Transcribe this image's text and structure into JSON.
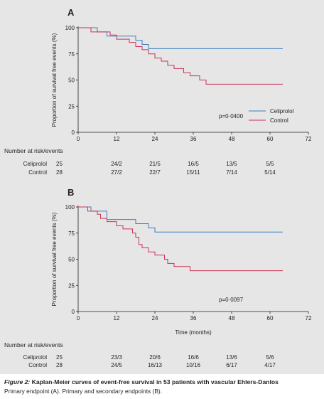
{
  "chart_data": [
    {
      "type": "line",
      "panel_label": "A",
      "ylabel": "Proportion of survival free events (%)",
      "xlabel": "",
      "x_ticks": [
        "0",
        "12",
        "24",
        "36",
        "48",
        "60",
        "72"
      ],
      "y_ticks": [
        "0",
        "25",
        "50",
        "75",
        "100"
      ],
      "xlim": [
        0,
        72
      ],
      "ylim": [
        0,
        100
      ],
      "p_value": "p=0·0400",
      "legend": [
        "Celiprolol",
        "Control"
      ],
      "legend_position": "bottom-right",
      "series": [
        {
          "name": "Celiprolol",
          "color": "#3a7fc1",
          "points": [
            [
              0,
              100
            ],
            [
              6,
              100
            ],
            [
              6,
              96
            ],
            [
              9,
              96
            ],
            [
              9,
              92
            ],
            [
              18,
              92
            ],
            [
              18,
              88
            ],
            [
              20,
              88
            ],
            [
              20,
              84
            ],
            [
              22,
              84
            ],
            [
              22,
              80
            ],
            [
              64,
              80
            ]
          ]
        },
        {
          "name": "Control",
          "color": "#cc3355",
          "points": [
            [
              0,
              100
            ],
            [
              4,
              100
            ],
            [
              4,
              96
            ],
            [
              10,
              96
            ],
            [
              10,
              93
            ],
            [
              12,
              93
            ],
            [
              12,
              89
            ],
            [
              16,
              89
            ],
            [
              16,
              86
            ],
            [
              18,
              86
            ],
            [
              18,
              82
            ],
            [
              20,
              82
            ],
            [
              20,
              79
            ],
            [
              22,
              79
            ],
            [
              22,
              75
            ],
            [
              24,
              75
            ],
            [
              24,
              71
            ],
            [
              26,
              71
            ],
            [
              26,
              68
            ],
            [
              28,
              68
            ],
            [
              28,
              64
            ],
            [
              30,
              64
            ],
            [
              30,
              61
            ],
            [
              33,
              61
            ],
            [
              33,
              57
            ],
            [
              35,
              57
            ],
            [
              35,
              54
            ],
            [
              38,
              54
            ],
            [
              38,
              50
            ],
            [
              40,
              50
            ],
            [
              40,
              46
            ],
            [
              64,
              46
            ]
          ]
        }
      ],
      "risk_table": {
        "title": "Number at risk/events",
        "rows": [
          {
            "name": "Celiprolol",
            "values": [
              "25",
              "24/2",
              "21/5",
              "16/5",
              "13/5",
              "5/5"
            ]
          },
          {
            "name": "Control",
            "values": [
              "28",
              "27/2",
              "22/7",
              "15/11",
              "7/14",
              "5/14"
            ]
          }
        ]
      }
    },
    {
      "type": "line",
      "panel_label": "B",
      "ylabel": "Proportion of survival free events (%)",
      "xlabel": "Time (months)",
      "x_ticks": [
        "0",
        "12",
        "24",
        "36",
        "48",
        "60",
        "72"
      ],
      "y_ticks": [
        "0",
        "25",
        "50",
        "75",
        "100"
      ],
      "xlim": [
        0,
        72
      ],
      "ylim": [
        0,
        100
      ],
      "p_value": "p=0·0097",
      "series": [
        {
          "name": "Celiprolol",
          "color": "#3a7fc1",
          "points": [
            [
              0,
              100
            ],
            [
              4,
              100
            ],
            [
              4,
              96
            ],
            [
              9,
              96
            ],
            [
              9,
              88
            ],
            [
              18,
              88
            ],
            [
              18,
              84
            ],
            [
              22,
              84
            ],
            [
              22,
              80
            ],
            [
              24,
              80
            ],
            [
              24,
              76
            ],
            [
              64,
              76
            ]
          ]
        },
        {
          "name": "Control",
          "color": "#cc3355",
          "points": [
            [
              0,
              100
            ],
            [
              3,
              100
            ],
            [
              3,
              96
            ],
            [
              6,
              96
            ],
            [
              6,
              93
            ],
            [
              7,
              93
            ],
            [
              7,
              89
            ],
            [
              9,
              89
            ],
            [
              9,
              86
            ],
            [
              12,
              86
            ],
            [
              12,
              82
            ],
            [
              14,
              82
            ],
            [
              14,
              79
            ],
            [
              17,
              79
            ],
            [
              17,
              75
            ],
            [
              18,
              75
            ],
            [
              18,
              71
            ],
            [
              19,
              71
            ],
            [
              19,
              64
            ],
            [
              20,
              64
            ],
            [
              20,
              61
            ],
            [
              22,
              61
            ],
            [
              22,
              57
            ],
            [
              24,
              57
            ],
            [
              24,
              54
            ],
            [
              27,
              54
            ],
            [
              27,
              50
            ],
            [
              28,
              50
            ],
            [
              28,
              46
            ],
            [
              30,
              46
            ],
            [
              30,
              43
            ],
            [
              35,
              43
            ],
            [
              35,
              39
            ],
            [
              64,
              39
            ]
          ]
        }
      ],
      "risk_table": {
        "title": "Number at risk/events",
        "rows": [
          {
            "name": "Celiprolol",
            "values": [
              "25",
              "23/3",
              "20/6",
              "16/6",
              "13/6",
              "5/6"
            ]
          },
          {
            "name": "Control",
            "values": [
              "28",
              "24/5",
              "16/13",
              "10/16",
              "6/17",
              "4/17"
            ]
          }
        ]
      }
    }
  ],
  "caption": {
    "fig_label": "Figure 2:",
    "title": " Kaplan-Meier curves of event-free survival in 53 patients with vascular Ehlers-Danlos",
    "subtitle": "Primary endpoint (A). Primary and secondary endpoints (B)."
  }
}
